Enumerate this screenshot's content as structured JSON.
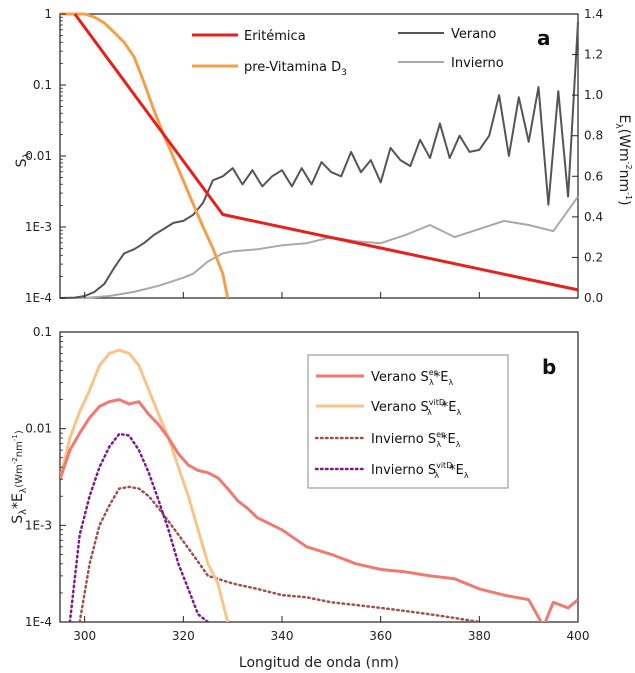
{
  "chart_data": [
    {
      "type": "line",
      "panel_letter": "a",
      "ylabel_left": {
        "main": "S",
        "sub": "λ"
      },
      "ylabel_right": {
        "main": "E",
        "sub": "λ",
        "unit_pre": "(Wm",
        "sup1": "-2",
        "mid": "nm",
        "sup2": "-1",
        "close": ")"
      },
      "x_range": [
        295,
        400
      ],
      "y_left": {
        "scale": "log",
        "range": [
          0.0001,
          1
        ],
        "ticks": [
          1,
          0.1,
          0.01,
          0.001,
          0.0001
        ],
        "tick_labels": [
          "1",
          "0.1",
          "0.01",
          "1E-3",
          "1E-4"
        ]
      },
      "y_right": {
        "scale": "linear",
        "range": [
          0,
          1.4
        ],
        "ticks": [
          0,
          0.2,
          0.4,
          0.6,
          0.8,
          1.0,
          1.2,
          1.4
        ],
        "tick_labels": [
          "0.0",
          "0.2",
          "0.4",
          "0.6",
          "0.8",
          "1.0",
          "1.2",
          "1.4"
        ]
      },
      "legend_position": "top",
      "series": [
        {
          "name": "Eritémica",
          "color": "#e8201c",
          "axis": "left",
          "style": "solid",
          "x": [
            298,
            328,
            400
          ],
          "y": [
            1,
            0.0015,
            0.00013
          ]
        },
        {
          "name": "pre-Vitamina D",
          "name_sub": "3",
          "color": "#f4a04a",
          "axis": "left",
          "style": "solid",
          "x": [
            295,
            300,
            302,
            304,
            306,
            308,
            310,
            312,
            314,
            316,
            318,
            320,
            322,
            324,
            326,
            328,
            329
          ],
          "y": [
            1,
            1,
            0.9,
            0.75,
            0.55,
            0.4,
            0.25,
            0.11,
            0.045,
            0.02,
            0.0095,
            0.0045,
            0.0021,
            0.001,
            0.0005,
            0.00022,
            0.0001
          ]
        },
        {
          "name": "Verano",
          "color": "#555555",
          "axis": "right",
          "style": "solid",
          "x": [
            295,
            298,
            300,
            302,
            304,
            306,
            308,
            310,
            312,
            314,
            316,
            318,
            320,
            322,
            324,
            326,
            328,
            330,
            332,
            334,
            336,
            338,
            340,
            342,
            344,
            346,
            348,
            350,
            352,
            354,
            356,
            358,
            360,
            362,
            364,
            366,
            368,
            370,
            372,
            374,
            376,
            378,
            380,
            382,
            384,
            386,
            388,
            390,
            392,
            394,
            396,
            398,
            400
          ],
          "y": [
            0.0,
            0.002,
            0.01,
            0.03,
            0.07,
            0.15,
            0.22,
            0.24,
            0.27,
            0.31,
            0.34,
            0.37,
            0.38,
            0.41,
            0.47,
            0.58,
            0.6,
            0.64,
            0.56,
            0.63,
            0.55,
            0.6,
            0.63,
            0.55,
            0.64,
            0.56,
            0.67,
            0.62,
            0.6,
            0.72,
            0.62,
            0.68,
            0.57,
            0.74,
            0.68,
            0.65,
            0.78,
            0.69,
            0.86,
            0.69,
            0.8,
            0.72,
            0.73,
            0.8,
            1.0,
            0.7,
            0.99,
            0.77,
            1.04,
            0.46,
            1.02,
            0.5,
            1.36
          ]
        },
        {
          "name": "Invierno",
          "color": "#a9a9a9",
          "axis": "right",
          "style": "solid",
          "x": [
            295,
            300,
            305,
            310,
            315,
            320,
            322,
            325,
            328,
            330,
            335,
            340,
            345,
            350,
            355,
            360,
            365,
            370,
            375,
            380,
            385,
            390,
            395,
            400
          ],
          "y": [
            0.0,
            0.0,
            0.01,
            0.03,
            0.06,
            0.1,
            0.12,
            0.18,
            0.22,
            0.23,
            0.24,
            0.26,
            0.27,
            0.3,
            0.28,
            0.27,
            0.31,
            0.36,
            0.3,
            0.34,
            0.38,
            0.36,
            0.33,
            0.5
          ]
        }
      ]
    },
    {
      "type": "line",
      "panel_letter": "b",
      "xlabel": "Longitud de onda (nm)",
      "ylabel": {
        "main": "S",
        "sub1": "λ",
        "mid": "*E",
        "sub2": "λ",
        "unit_pre": "(Wm",
        "sup1": "-2",
        "unit_mid": "nm",
        "sup2": "-1",
        "close": ")"
      },
      "x_range": [
        295,
        400
      ],
      "x_ticks": [
        300,
        320,
        340,
        360,
        380,
        400
      ],
      "y": {
        "scale": "log",
        "range": [
          0.0001,
          0.1
        ],
        "ticks": [
          0.1,
          0.01,
          0.001,
          0.0001
        ],
        "tick_labels": [
          "0.1",
          "0.01",
          "1E-3",
          "1E-4"
        ]
      },
      "legend_position": "top-right",
      "series": [
        {
          "name": "Verano",
          "sup": "er",
          "color": "#f07a72",
          "style": "solid",
          "x": [
            295,
            297,
            299,
            301,
            303,
            305,
            307,
            309,
            311,
            313,
            315,
            317,
            319,
            321,
            323,
            325,
            327,
            329,
            331,
            333,
            335,
            340,
            345,
            350,
            355,
            360,
            365,
            370,
            375,
            380,
            385,
            390,
            393,
            395,
            398,
            400
          ],
          "y": [
            0.003,
            0.006,
            0.009,
            0.013,
            0.017,
            0.019,
            0.02,
            0.018,
            0.019,
            0.014,
            0.011,
            0.008,
            0.0055,
            0.0042,
            0.0037,
            0.0035,
            0.0031,
            0.0024,
            0.0018,
            0.0015,
            0.0012,
            0.0009,
            0.0006,
            0.0005,
            0.0004,
            0.00035,
            0.00033,
            0.0003,
            0.00028,
            0.00022,
            0.00019,
            0.00017,
            9e-05,
            0.00016,
            0.00014,
            0.00017
          ]
        },
        {
          "name": "Verano",
          "sup": "vitD",
          "color": "#f9c48a",
          "style": "solid",
          "x": [
            295,
            297,
            299,
            301,
            303,
            305,
            307,
            309,
            311,
            313,
            315,
            317,
            319,
            321,
            323,
            325,
            327,
            329
          ],
          "y": [
            0.003,
            0.008,
            0.015,
            0.025,
            0.045,
            0.06,
            0.065,
            0.06,
            0.045,
            0.025,
            0.014,
            0.008,
            0.004,
            0.002,
            0.0009,
            0.0004,
            0.00025,
            0.0001
          ]
        },
        {
          "name": "Invierno",
          "sup": "er",
          "color": "#9e5050",
          "style": "dotted",
          "x": [
            299,
            301,
            303,
            305,
            307,
            309,
            311,
            313,
            315,
            317,
            319,
            321,
            323,
            325,
            330,
            335,
            340,
            345,
            350,
            355,
            360,
            365,
            370,
            375,
            380
          ],
          "y": [
            0.0001,
            0.0004,
            0.001,
            0.0016,
            0.0024,
            0.0025,
            0.0024,
            0.002,
            0.0015,
            0.0011,
            0.0008,
            0.00058,
            0.00042,
            0.0003,
            0.00025,
            0.00022,
            0.00019,
            0.00018,
            0.00016,
            0.00015,
            0.00014,
            0.00013,
            0.00012,
            0.00011,
            0.0001
          ]
        },
        {
          "name": "Invierno",
          "sup": "vitD",
          "color": "#7a1a8c",
          "style": "dotted",
          "x": [
            297,
            299,
            301,
            303,
            305,
            307,
            309,
            311,
            313,
            315,
            317,
            319,
            321,
            323,
            325
          ],
          "y": [
            0.0001,
            0.0008,
            0.002,
            0.004,
            0.0065,
            0.0088,
            0.0085,
            0.006,
            0.0035,
            0.0018,
            0.0009,
            0.0004,
            0.00022,
            0.00012,
            0.0001
          ]
        }
      ],
      "legend_common": {
        "s": "S",
        "sub_s": "λ",
        "mid": "*E",
        "sub_e": "λ"
      }
    }
  ]
}
